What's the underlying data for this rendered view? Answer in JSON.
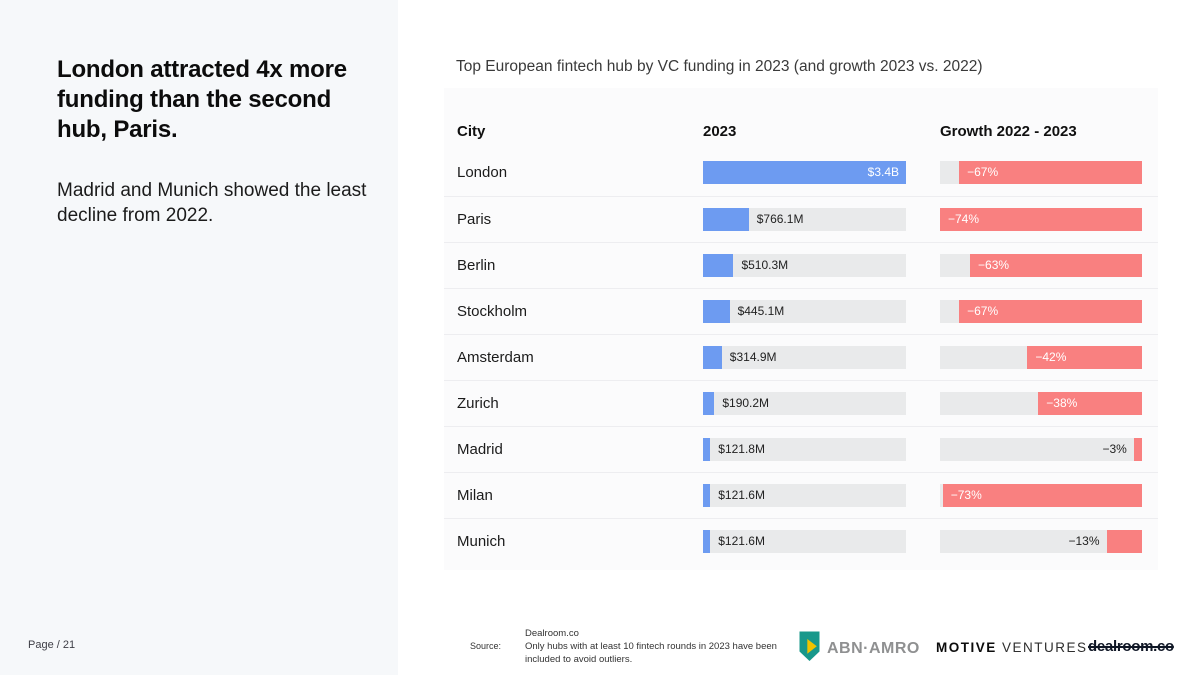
{
  "sidebar": {
    "headline": "London attracted 4x more funding than the second hub, Paris.",
    "subtext": "Madrid and Munich showed the least decline from 2022.",
    "page_label": "Page / 21"
  },
  "chart_data": {
    "type": "bar",
    "title": "Top European fintech hub by VC funding in 2023 (and growth 2023 vs. 2022)",
    "columns": [
      "City",
      "2023",
      "Growth 2022 - 2023"
    ],
    "funding_axis": {
      "unit": "USD",
      "max_musd": 3400
    },
    "growth_axis": {
      "unit": "percent",
      "max_abs_pct": 74
    },
    "legend_position": "none",
    "grid": false,
    "rows": [
      {
        "city": "London",
        "funding_label": "$3.4B",
        "funding_musd": 3400.0,
        "growth_label": "−67%",
        "growth_pct": -67
      },
      {
        "city": "Paris",
        "funding_label": "$766.1M",
        "funding_musd": 766.1,
        "growth_label": "−74%",
        "growth_pct": -74
      },
      {
        "city": "Berlin",
        "funding_label": "$510.3M",
        "funding_musd": 510.3,
        "growth_label": "−63%",
        "growth_pct": -63
      },
      {
        "city": "Stockholm",
        "funding_label": "$445.1M",
        "funding_musd": 445.1,
        "growth_label": "−67%",
        "growth_pct": -67
      },
      {
        "city": "Amsterdam",
        "funding_label": "$314.9M",
        "funding_musd": 314.9,
        "growth_label": "−42%",
        "growth_pct": -42
      },
      {
        "city": "Zurich",
        "funding_label": "$190.2M",
        "funding_musd": 190.2,
        "growth_label": "−38%",
        "growth_pct": -38
      },
      {
        "city": "Madrid",
        "funding_label": "$121.8M",
        "funding_musd": 121.8,
        "growth_label": "−3%",
        "growth_pct": -3
      },
      {
        "city": "Milan",
        "funding_label": "$121.6M",
        "funding_musd": 121.6,
        "growth_label": "−73%",
        "growth_pct": -73
      },
      {
        "city": "Munich",
        "funding_label": "$121.6M",
        "funding_musd": 121.6,
        "growth_label": "−13%",
        "growth_pct": -13
      }
    ],
    "colors": {
      "funding_bar": "#6d9bf1",
      "growth_bar": "#f98080",
      "track": "#e9eaeb",
      "panel_bg": "#fbfbfc",
      "sidebar_bg": "#f6f8fa"
    }
  },
  "footer": {
    "source_label": "Source:",
    "source_name": "Dealroom.co",
    "source_note": "Only hubs with at least 10 fintech rounds in 2023 have been included to avoid outliers.",
    "logos": [
      {
        "name": "ABN AMRO",
        "text": "ABN·AMRO"
      },
      {
        "name": "Motive Ventures",
        "text_bold": "MOTIVE",
        "text_regular": " VENTURES"
      },
      {
        "name": "Dealroom",
        "text": "dealroom.co"
      }
    ]
  }
}
